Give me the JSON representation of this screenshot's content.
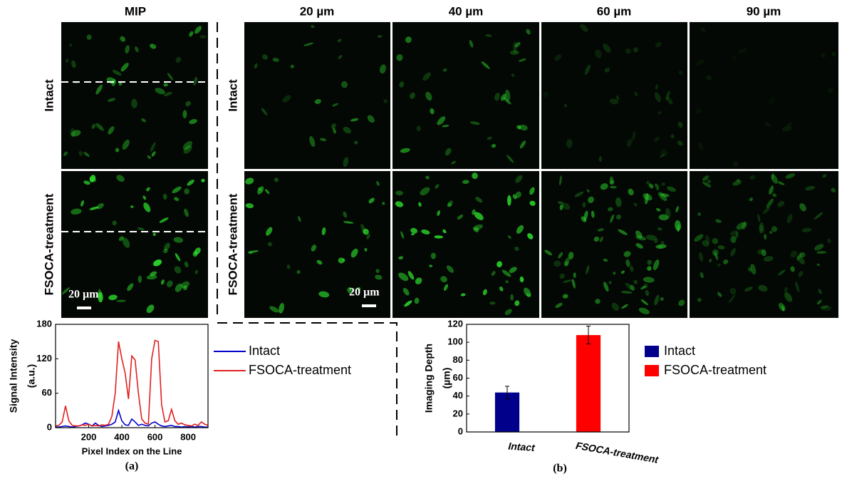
{
  "figure": {
    "mip_title": "MIP",
    "depth_titles": [
      "20 µm",
      "40 µm",
      "60 µm",
      "90 µm"
    ],
    "row_labels": [
      "Intact",
      "FSOCA-treatment"
    ],
    "scale_bar": "20 µm"
  },
  "chart_data": [
    {
      "type": "line",
      "caption": "(a)",
      "xlabel": "Pixel Index on the Line",
      "ylabel": [
        "Signal Intensity",
        "(a.u.)"
      ],
      "x": [
        0,
        20,
        40,
        60,
        80,
        100,
        120,
        140,
        160,
        180,
        200,
        220,
        240,
        260,
        280,
        300,
        320,
        340,
        360,
        380,
        400,
        420,
        440,
        460,
        480,
        500,
        520,
        540,
        560,
        580,
        600,
        620,
        640,
        660,
        680,
        700,
        720,
        740,
        760,
        780,
        800,
        820,
        840,
        860,
        880,
        900,
        920
      ],
      "series": [
        {
          "name": "Intact",
          "color": "#0000cc",
          "values": [
            1,
            1,
            2,
            3,
            2,
            1,
            2,
            3,
            5,
            8,
            6,
            3,
            8,
            4,
            2,
            3,
            4,
            6,
            10,
            30,
            12,
            5,
            4,
            15,
            10,
            4,
            6,
            4,
            3,
            8,
            10,
            6,
            3,
            2,
            3,
            4,
            2,
            2,
            1,
            2,
            1,
            2,
            1,
            2,
            2,
            1,
            1
          ]
        },
        {
          "name": "FSOCA-treatment",
          "color": "#e02020",
          "values": [
            3,
            4,
            10,
            38,
            12,
            4,
            3,
            3,
            5,
            4,
            6,
            3,
            4,
            3,
            5,
            4,
            6,
            20,
            60,
            150,
            120,
            95,
            50,
            125,
            118,
            60,
            15,
            8,
            6,
            120,
            152,
            150,
            40,
            10,
            12,
            32,
            12,
            6,
            8,
            5,
            4,
            3,
            6,
            4,
            10,
            6,
            4
          ]
        }
      ],
      "xlim": [
        0,
        920
      ],
      "xticks": [
        200,
        400,
        600,
        800
      ],
      "ylim": [
        0,
        180
      ],
      "yticks": [
        0,
        60,
        120,
        180
      ]
    },
    {
      "type": "bar",
      "caption": "(b)",
      "ylabel": [
        "Imaging Depth",
        "(µm)"
      ],
      "categories": [
        "Intact",
        "FSOCA-treatment"
      ],
      "values": [
        44,
        108
      ],
      "errors": [
        7,
        10
      ],
      "colors": [
        "#00008b",
        "#ff0000"
      ],
      "ylim": [
        0,
        120
      ],
      "yticks": [
        0,
        20,
        40,
        60,
        80,
        100,
        120
      ]
    }
  ]
}
